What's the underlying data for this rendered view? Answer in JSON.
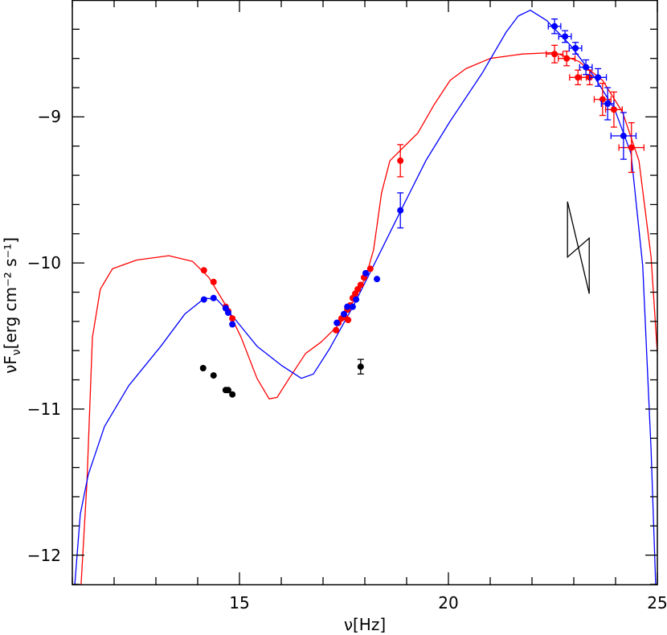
{
  "chart_data": {
    "type": "scatter",
    "xlabel": "ν[Hz]",
    "ylabel_parts": {
      "main": "νF",
      "sub": "ν",
      "rest": "[erg cm⁻² s⁻¹]"
    },
    "xlim": [
      11,
      25
    ],
    "ylim": [
      -12.2,
      -8.2
    ],
    "x_major_ticks": [
      15,
      20,
      25
    ],
    "x_tick_labels": [
      "15",
      "20",
      "25"
    ],
    "y_major_ticks": [
      -9,
      -10,
      -11,
      -12
    ],
    "y_tick_labels": [
      "−9",
      "−10",
      "−11",
      "−12"
    ],
    "x_minor_step": 1,
    "y_minor_step": 0.2,
    "grid": false,
    "colors": {
      "red": "#ff0000",
      "blue": "#0000ff",
      "black": "#000000"
    },
    "curves": [
      {
        "color": "red",
        "points": [
          [
            11.21,
            -12.2
          ],
          [
            11.35,
            -11.5
          ],
          [
            11.48,
            -10.51
          ],
          [
            11.67,
            -10.18
          ],
          [
            11.96,
            -10.04
          ],
          [
            12.54,
            -9.98
          ],
          [
            13.31,
            -9.95
          ],
          [
            13.88,
            -9.99
          ],
          [
            14.27,
            -10.1
          ],
          [
            14.65,
            -10.28
          ],
          [
            15.04,
            -10.51
          ],
          [
            15.42,
            -10.79
          ],
          [
            15.71,
            -10.93
          ],
          [
            15.9,
            -10.92
          ],
          [
            16.19,
            -10.79
          ],
          [
            16.58,
            -10.62
          ],
          [
            16.96,
            -10.54
          ],
          [
            17.35,
            -10.43
          ],
          [
            17.73,
            -10.26
          ],
          [
            18.02,
            -10.1
          ],
          [
            18.21,
            -9.91
          ],
          [
            18.4,
            -9.52
          ],
          [
            18.6,
            -9.3
          ],
          [
            18.88,
            -9.22
          ],
          [
            19.27,
            -9.11
          ],
          [
            19.65,
            -8.92
          ],
          [
            20.04,
            -8.75
          ],
          [
            20.42,
            -8.67
          ],
          [
            21.0,
            -8.6
          ],
          [
            21.77,
            -8.57
          ],
          [
            22.54,
            -8.56
          ],
          [
            23.12,
            -8.62
          ],
          [
            23.69,
            -8.75
          ],
          [
            24.17,
            -8.97
          ],
          [
            24.56,
            -9.3
          ],
          [
            24.85,
            -9.96
          ],
          [
            25.0,
            -10.62
          ]
        ]
      },
      {
        "color": "blue",
        "points": [
          [
            11.06,
            -12.2
          ],
          [
            11.19,
            -11.72
          ],
          [
            11.38,
            -11.45
          ],
          [
            11.77,
            -11.12
          ],
          [
            12.35,
            -10.84
          ],
          [
            13.12,
            -10.57
          ],
          [
            13.69,
            -10.35
          ],
          [
            14.17,
            -10.24
          ],
          [
            14.46,
            -10.25
          ],
          [
            14.85,
            -10.37
          ],
          [
            15.42,
            -10.57
          ],
          [
            16.0,
            -10.7
          ],
          [
            16.48,
            -10.79
          ],
          [
            16.77,
            -10.76
          ],
          [
            17.15,
            -10.59
          ],
          [
            17.73,
            -10.29
          ],
          [
            18.31,
            -9.96
          ],
          [
            18.88,
            -9.63
          ],
          [
            19.46,
            -9.3
          ],
          [
            20.04,
            -9.03
          ],
          [
            20.81,
            -8.7
          ],
          [
            21.38,
            -8.42
          ],
          [
            21.67,
            -8.31
          ],
          [
            21.96,
            -8.27
          ],
          [
            22.35,
            -8.34
          ],
          [
            22.92,
            -8.51
          ],
          [
            23.5,
            -8.73
          ],
          [
            23.98,
            -8.95
          ],
          [
            24.37,
            -9.25
          ],
          [
            24.65,
            -10.02
          ],
          [
            24.85,
            -11.28
          ],
          [
            24.96,
            -12.2
          ]
        ]
      }
    ],
    "series": [
      {
        "color": "red",
        "points": [
          {
            "x": 14.15,
            "y": -10.05
          },
          {
            "x": 14.38,
            "y": -10.13
          },
          {
            "x": 14.67,
            "y": -10.3
          },
          {
            "x": 14.73,
            "y": -10.33
          },
          {
            "x": 14.83,
            "y": -10.38
          },
          {
            "x": 17.31,
            "y": -10.46
          },
          {
            "x": 17.37,
            "y": -10.41
          },
          {
            "x": 17.44,
            "y": -10.38
          },
          {
            "x": 17.52,
            "y": -10.37
          },
          {
            "x": 17.6,
            "y": -10.39
          },
          {
            "x": 17.58,
            "y": -10.32
          },
          {
            "x": 17.65,
            "y": -10.29
          },
          {
            "x": 17.71,
            "y": -10.24
          },
          {
            "x": 17.77,
            "y": -10.21
          },
          {
            "x": 17.83,
            "y": -10.18
          },
          {
            "x": 17.9,
            "y": -10.15
          },
          {
            "x": 17.98,
            "y": -10.1
          },
          {
            "x": 18.13,
            "y": -10.04
          },
          {
            "x": 18.85,
            "y": -9.3,
            "yerr": 0.11
          },
          {
            "x": 22.54,
            "y": -8.57,
            "xerr": 0.2,
            "yerr": 0.06
          },
          {
            "x": 22.83,
            "y": -8.6,
            "xerr": 0.2,
            "yerr": 0.05
          },
          {
            "x": 23.1,
            "y": -8.73,
            "xerr": 0.2,
            "yerr": 0.05
          },
          {
            "x": 23.38,
            "y": -8.73,
            "xerr": 0.2,
            "yerr": 0.05
          },
          {
            "x": 23.69,
            "y": -8.88,
            "xerr": 0.2,
            "yerr": 0.11
          },
          {
            "x": 23.96,
            "y": -8.95,
            "xerr": 0.2,
            "yerr": 0.12
          },
          {
            "x": 24.38,
            "y": -9.21,
            "xerr": 0.3,
            "yerr": 0.17
          }
        ]
      },
      {
        "color": "blue",
        "points": [
          {
            "x": 14.15,
            "y": -10.25
          },
          {
            "x": 14.38,
            "y": -10.24
          },
          {
            "x": 14.67,
            "y": -10.31
          },
          {
            "x": 14.73,
            "y": -10.34
          },
          {
            "x": 14.83,
            "y": -10.42
          },
          {
            "x": 17.33,
            "y": -10.41
          },
          {
            "x": 17.5,
            "y": -10.35
          },
          {
            "x": 17.58,
            "y": -10.3
          },
          {
            "x": 17.71,
            "y": -10.3
          },
          {
            "x": 17.79,
            "y": -10.25
          },
          {
            "x": 18.02,
            "y": -10.07
          },
          {
            "x": 18.29,
            "y": -10.11
          },
          {
            "x": 18.85,
            "y": -9.64,
            "yerr": 0.12
          },
          {
            "x": 22.54,
            "y": -8.38,
            "xerr": 0.15,
            "yerr": 0.05
          },
          {
            "x": 22.79,
            "y": -8.45,
            "xerr": 0.15,
            "yerr": 0.04
          },
          {
            "x": 23.04,
            "y": -8.53,
            "xerr": 0.15,
            "yerr": 0.04
          },
          {
            "x": 23.29,
            "y": -8.66,
            "xerr": 0.15,
            "yerr": 0.05
          },
          {
            "x": 23.58,
            "y": -8.73,
            "xerr": 0.2,
            "yerr": 0.06
          },
          {
            "x": 23.81,
            "y": -8.91,
            "xerr": 0.15,
            "yerr": 0.11
          },
          {
            "x": 24.19,
            "y": -9.13,
            "xerr": 0.3,
            "yerr": 0.16
          }
        ]
      },
      {
        "color": "black",
        "points": [
          {
            "x": 14.13,
            "y": -10.72
          },
          {
            "x": 14.38,
            "y": -10.77
          },
          {
            "x": 14.67,
            "y": -10.87
          },
          {
            "x": 14.73,
            "y": -10.87
          },
          {
            "x": 14.83,
            "y": -10.9
          },
          {
            "x": 17.9,
            "y": -10.71,
            "yerr": 0.05
          }
        ]
      }
    ],
    "bowtie": {
      "color": "black",
      "points": [
        [
          22.85,
          -9.58
        ],
        [
          22.85,
          -9.96
        ],
        [
          23.37,
          -9.83
        ],
        [
          23.37,
          -10.21
        ],
        [
          22.85,
          -9.58
        ]
      ]
    }
  }
}
